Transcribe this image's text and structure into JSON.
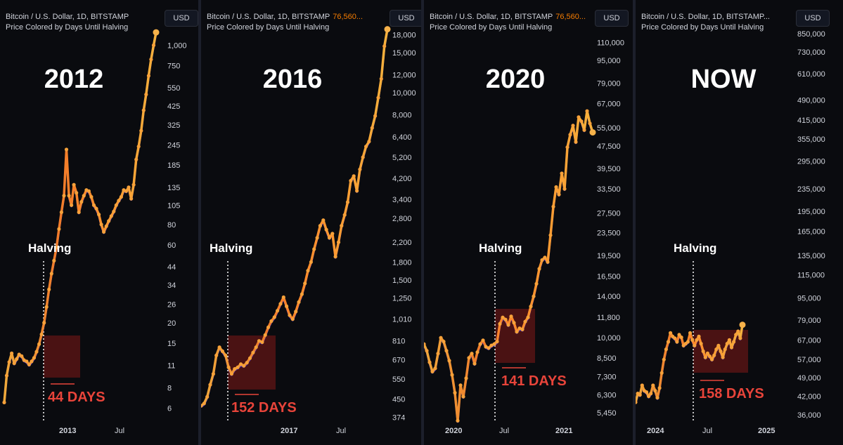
{
  "chart_data": [
    {
      "type": "line",
      "header": "Bitcoin / U.S. Dollar, 1D, BITSTAMP",
      "header_price": "",
      "subtitle": "Price Colored by Days Until Halving",
      "currency_button": "USD",
      "era_label": "2012",
      "halving_label": "Halving",
      "days_label": "44 DAYS",
      "y_scale": "log",
      "ylim": [
        5.2,
        1300
      ],
      "y_ticks": [
        "6",
        "8",
        "11",
        "15",
        "20",
        "26",
        "34",
        "44",
        "60",
        "80",
        "105",
        "135",
        "185",
        "245",
        "325",
        "425",
        "550",
        "750",
        "1,000"
      ],
      "x_ticks": [
        {
          "label": "2013",
          "bold": true
        },
        {
          "label": "Jul",
          "bold": false
        }
      ],
      "halving_date_index": 0.2,
      "series": [
        {
          "values": [
            6.5,
            9.5,
            11.5,
            13,
            11.3,
            12,
            12.8,
            12.5,
            11.8,
            11.6,
            11.1,
            11.6,
            12.2,
            13.3,
            14.8,
            17,
            20,
            25,
            32,
            40,
            48,
            58,
            75,
            95,
            120,
            230,
            120,
            105,
            140,
            125,
            95,
            110,
            120,
            130,
            128,
            118,
            105,
            100,
            92,
            80,
            72,
            78,
            84,
            90,
            96,
            105,
            112,
            118,
            130,
            128,
            135,
            115,
            140,
            200,
            240,
            300,
            400,
            500,
            650,
            820,
            1000,
            1200
          ]
        }
      ]
    },
    {
      "type": "line",
      "header": "Bitcoin / U.S. Dollar, 1D, BITSTAMP",
      "header_price": "76,560...",
      "subtitle": "Price Colored by Days Until Halving",
      "currency_button": "USD",
      "era_label": "2016",
      "halving_label": "Halving",
      "days_label": "152 DAYS",
      "y_scale": "log",
      "ylim": [
        370,
        19500
      ],
      "y_ticks": [
        "374",
        "450",
        "550",
        "670",
        "810",
        "1,010",
        "1,250",
        "1,500",
        "1,800",
        "2,200",
        "2,800",
        "3,400",
        "4,200",
        "5,200",
        "6,400",
        "8,000",
        "10,000",
        "12,000",
        "15,000",
        "18,000"
      ],
      "x_ticks": [
        {
          "label": "2017",
          "bold": true
        },
        {
          "label": "Jul",
          "bold": false
        }
      ],
      "halving_date_index": 0.14,
      "series": [
        {
          "values": [
            420,
            430,
            460,
            520,
            580,
            700,
            760,
            730,
            700,
            620,
            580,
            610,
            620,
            640,
            630,
            650,
            680,
            720,
            760,
            810,
            800,
            860,
            930,
            990,
            1030,
            1100,
            1180,
            1260,
            1150,
            1050,
            1010,
            1090,
            1200,
            1300,
            1450,
            1650,
            1800,
            2050,
            2300,
            2600,
            2750,
            2500,
            2300,
            2400,
            1900,
            2200,
            2600,
            2900,
            3300,
            4100,
            4300,
            3700,
            4600,
            5200,
            5800,
            6100,
            7000,
            7900,
            9500,
            11500,
            16000,
            19000
          ]
        }
      ]
    },
    {
      "type": "line",
      "header": "Bitcoin / U.S. Dollar, 1D, BITSTAMP",
      "header_price": "76,560...",
      "subtitle": "Price Colored by Days Until Halving",
      "currency_button": "USD",
      "era_label": "2020",
      "halving_label": "Halving",
      "days_label": "141 DAYS",
      "y_scale": "log",
      "ylim": [
        5200,
        125000
      ],
      "y_ticks": [
        "5,450",
        "6,300",
        "7,300",
        "8,500",
        "10,000",
        "11,800",
        "14,000",
        "16,500",
        "19,500",
        "23,500",
        "27,500",
        "33,500",
        "39,500",
        "47,500",
        "55,000",
        "67,000",
        "79,000",
        "95,000",
        "110,000"
      ],
      "x_ticks": [
        {
          "label": "2020",
          "bold": true
        },
        {
          "label": "Jul",
          "bold": false
        },
        {
          "label": "2021",
          "bold": true
        }
      ],
      "halving_date_index": 0.41,
      "series": [
        {
          "values": [
            9500,
            9000,
            8200,
            7600,
            7800,
            8800,
            10000,
            9700,
            9000,
            8300,
            7400,
            6400,
            5100,
            6800,
            6200,
            7200,
            8500,
            8800,
            8100,
            8900,
            9500,
            9800,
            9300,
            9200,
            9400,
            9500,
            9700,
            11200,
            11800,
            11600,
            11100,
            11900,
            11300,
            10500,
            10800,
            10700,
            11400,
            11800,
            12900,
            14000,
            15500,
            17500,
            18800,
            19200,
            18500,
            23000,
            29000,
            34000,
            32000,
            38000,
            33500,
            47000,
            52000,
            56000,
            49000,
            60000,
            58000,
            54000,
            63000,
            57000,
            53000
          ]
        }
      ]
    },
    {
      "type": "line",
      "header": "Bitcoin / U.S. Dollar, 1D, BITSTAMP...",
      "header_price": "",
      "subtitle": "Price Colored by Days Until Halving",
      "currency_button": "USD",
      "era_label": "NOW",
      "halving_label": "Halving",
      "days_label": "158 DAYS",
      "y_scale": "log",
      "ylim": [
        35000,
        900000
      ],
      "y_ticks": [
        "36,000",
        "42,000",
        "49,000",
        "57,000",
        "67,000",
        "79,000",
        "95,000",
        "115,000",
        "135,000",
        "165,000",
        "195,000",
        "235,000",
        "295,000",
        "355,000",
        "415,000",
        "490,000",
        "610,000",
        "730,000",
        "850,000"
      ],
      "x_ticks": [
        {
          "label": "2024",
          "bold": true
        },
        {
          "label": "Jul",
          "bold": false
        },
        {
          "label": "2025",
          "bold": true
        }
      ],
      "halving_date_index": 0.52,
      "series": [
        {
          "values": [
            40000,
            43000,
            42500,
            46000,
            44000,
            43500,
            42000,
            43000,
            46000,
            44000,
            41500,
            45000,
            51000,
            57000,
            62000,
            66000,
            71000,
            69000,
            68000,
            66000,
            70000,
            68500,
            64000,
            65000,
            66000,
            71000,
            67000,
            64000,
            67000,
            69000,
            65000,
            61000,
            58000,
            60000,
            58500,
            57000,
            59000,
            62000,
            64000,
            61000,
            58000,
            62000,
            65000,
            67000,
            63000,
            66000,
            70000,
            72000,
            68000,
            76000
          ]
        }
      ]
    }
  ]
}
